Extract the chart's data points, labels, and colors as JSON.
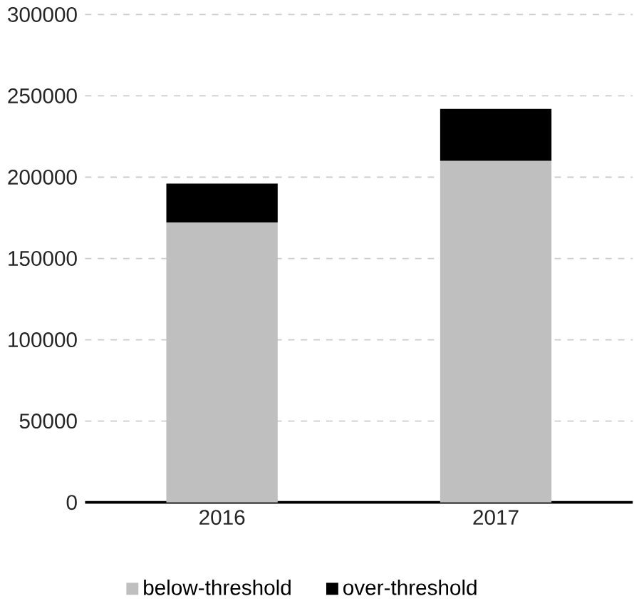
{
  "chart_data": {
    "type": "bar",
    "stacked": true,
    "categories": [
      "2016",
      "2017"
    ],
    "series": [
      {
        "name": "below-threshold",
        "color": "#bfbfbf",
        "values": [
          172000,
          210000
        ]
      },
      {
        "name": "over-threshold",
        "color": "#000000",
        "values": [
          24000,
          32000
        ]
      }
    ],
    "ylim": [
      0,
      300000
    ],
    "yticks": [
      0,
      50000,
      100000,
      150000,
      200000,
      250000,
      300000
    ],
    "grid": "y",
    "legend": "bottom"
  }
}
